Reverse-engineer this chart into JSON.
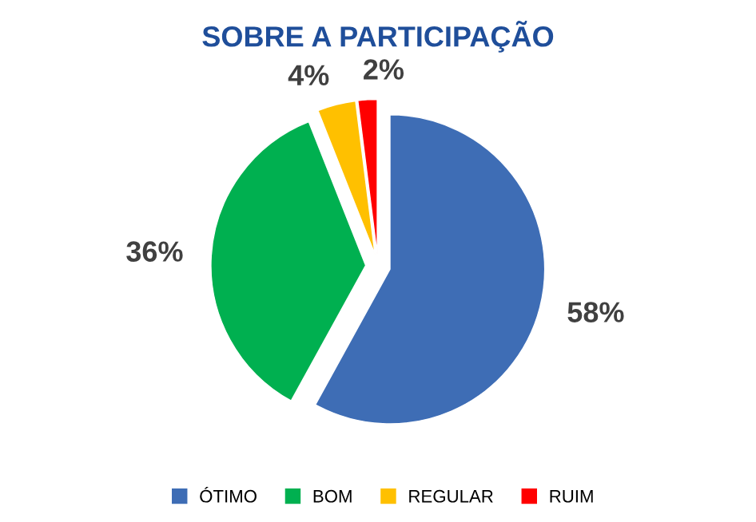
{
  "chart_data": {
    "type": "pie",
    "title": "SOBRE A PARTICIPAÇÃO",
    "categories": [
      "ÓTIMO",
      "BOM",
      "REGULAR",
      "RUIM"
    ],
    "values": [
      58,
      36,
      4,
      2
    ],
    "colors": [
      "#3e6db5",
      "#00b050",
      "#ffc000",
      "#ff0000"
    ],
    "value_labels": [
      "58%",
      "36%",
      "4%",
      "2%"
    ],
    "legend": "bottom"
  }
}
